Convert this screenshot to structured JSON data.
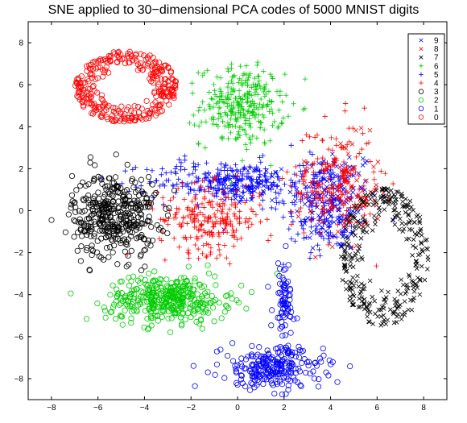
{
  "chart_data": {
    "type": "scatter",
    "title": "SNE applied to 30−dimensional PCA codes of 5000 MNIST digits",
    "xlabel": "",
    "ylabel": "",
    "xlim": [
      -9,
      9
    ],
    "ylim": [
      -9,
      9
    ],
    "x_ticks": [
      -8,
      -6,
      -4,
      -2,
      0,
      2,
      4,
      6,
      8
    ],
    "y_ticks": [
      -8,
      -6,
      -4,
      -2,
      0,
      2,
      4,
      6,
      8
    ],
    "grid": false,
    "legend_position": "top-right",
    "series": [
      {
        "name": "9",
        "marker": "x",
        "color": "#0000ff",
        "clusters": [
          {
            "cx": 4.2,
            "cy": 0.5,
            "rx": 1.8,
            "ry": 2.6,
            "n": 150
          },
          {
            "cx": 0.5,
            "cy": 1.2,
            "rx": 1.4,
            "ry": 1.0,
            "n": 60
          }
        ]
      },
      {
        "name": "8",
        "marker": "x",
        "color": "#ff0000",
        "clusters": [
          {
            "cx": 4.6,
            "cy": 0.8,
            "rx": 1.6,
            "ry": 2.6,
            "n": 90
          }
        ]
      },
      {
        "name": "7",
        "marker": "x",
        "color": "#000000",
        "clusters": [
          {
            "cx": 6.3,
            "cy": -2.2,
            "rx": 1.9,
            "ry": 3.3,
            "n": 330,
            "ring": true
          }
        ]
      },
      {
        "name": "6",
        "marker": "+",
        "color": "#00cc00",
        "clusters": [
          {
            "cx": 0.2,
            "cy": 5.0,
            "rx": 1.8,
            "ry": 1.9,
            "n": 300
          }
        ]
      },
      {
        "name": "5",
        "marker": "+",
        "color": "#0000ff",
        "clusters": [
          {
            "cx": -0.5,
            "cy": 1.4,
            "rx": 3.4,
            "ry": 1.0,
            "n": 260
          },
          {
            "cx": 3.6,
            "cy": 0.3,
            "rx": 1.6,
            "ry": 2.4,
            "n": 150
          }
        ]
      },
      {
        "name": "4",
        "marker": "+",
        "color": "#ff0000",
        "clusters": [
          {
            "cx": -1.2,
            "cy": -0.4,
            "rx": 2.2,
            "ry": 1.6,
            "n": 230
          },
          {
            "cx": 4.1,
            "cy": 1.4,
            "rx": 1.8,
            "ry": 2.8,
            "n": 180
          }
        ]
      },
      {
        "name": "3",
        "marker": "o",
        "color": "#000000",
        "clusters": [
          {
            "cx": -5.3,
            "cy": -0.2,
            "rx": 1.8,
            "ry": 2.0,
            "n": 400
          }
        ]
      },
      {
        "name": "2",
        "marker": "o",
        "color": "#00cc00",
        "clusters": [
          {
            "cx": -3.0,
            "cy": -4.2,
            "rx": 2.6,
            "ry": 1.1,
            "n": 380
          }
        ]
      },
      {
        "name": "1",
        "marker": "o",
        "color": "#0000ff",
        "clusters": [
          {
            "cx": 1.5,
            "cy": -7.5,
            "rx": 2.2,
            "ry": 1.0,
            "n": 240
          },
          {
            "cx": 2.0,
            "cy": -4.5,
            "rx": 0.5,
            "ry": 2.2,
            "n": 80
          }
        ]
      },
      {
        "name": "0",
        "marker": "o",
        "color": "#ff0000",
        "clusters": [
          {
            "cx": -4.8,
            "cy": 5.9,
            "rx": 2.2,
            "ry": 1.7,
            "n": 320,
            "ring": true
          }
        ]
      }
    ]
  }
}
